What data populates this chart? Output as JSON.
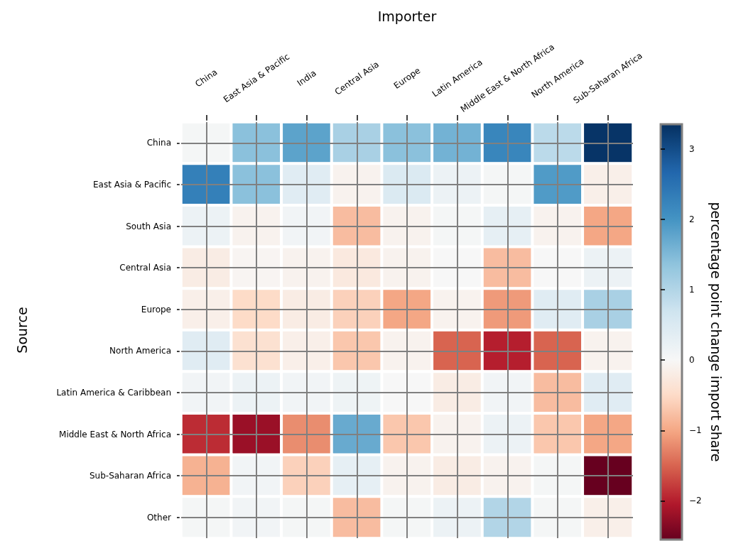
{
  "chart_data": {
    "type": "heatmap",
    "xlabel": "Importer",
    "ylabel": "Source",
    "clabel": "percentage point change import share",
    "categories": [
      "China",
      "East Asia & Pacific",
      "India",
      "Central Asia",
      "Europe",
      "Latin America",
      "Middle East & North Africa",
      "North America",
      "Sub-Saharan Africa"
    ],
    "y_categories": [
      "China",
      "East Asia & Pacific",
      "South Asia",
      "Central Asia",
      "Europe",
      "North America",
      "Latin America & Caribbean",
      "Middle East & North Africa",
      "Sub-Saharan Africa",
      "Other"
    ],
    "cells": [
      [
        0.05,
        1.4,
        1.8,
        1.1,
        1.4,
        1.6,
        2.2,
        0.9,
        3.3
      ],
      [
        2.3,
        1.4,
        0.4,
        -0.1,
        0.5,
        0.2,
        0.05,
        1.9,
        -0.15
      ],
      [
        0.2,
        -0.1,
        0.1,
        -0.8,
        -0.1,
        0.05,
        0.3,
        -0.1,
        -1.0
      ],
      [
        -0.2,
        -0.05,
        -0.1,
        -0.25,
        -0.1,
        0.0,
        -0.8,
        0.0,
        0.2
      ],
      [
        -0.15,
        -0.5,
        -0.2,
        -0.6,
        -1.0,
        -0.1,
        -1.1,
        0.4,
        1.1
      ],
      [
        0.4,
        -0.4,
        -0.15,
        -0.7,
        -0.1,
        -1.5,
        -2.0,
        -1.5,
        -0.1
      ],
      [
        0.1,
        0.2,
        0.1,
        0.15,
        0.0,
        -0.2,
        0.1,
        -0.8,
        0.4
      ],
      [
        -1.9,
        -2.2,
        -1.2,
        1.7,
        -0.7,
        -0.1,
        0.2,
        -0.7,
        -1.0
      ],
      [
        -0.9,
        0.1,
        -0.6,
        0.3,
        -0.1,
        -0.2,
        -0.1,
        0.05,
        -2.55
      ],
      [
        0.05,
        0.1,
        0.05,
        -0.8,
        0.05,
        0.2,
        1.0,
        0.05,
        -0.15
      ]
    ],
    "clim": [
      -2.55,
      3.35
    ],
    "cticks": [
      {
        "value": -2,
        "label": "−2"
      },
      {
        "value": -1,
        "label": "−1"
      },
      0,
      1,
      2,
      3
    ],
    "grid": true
  }
}
